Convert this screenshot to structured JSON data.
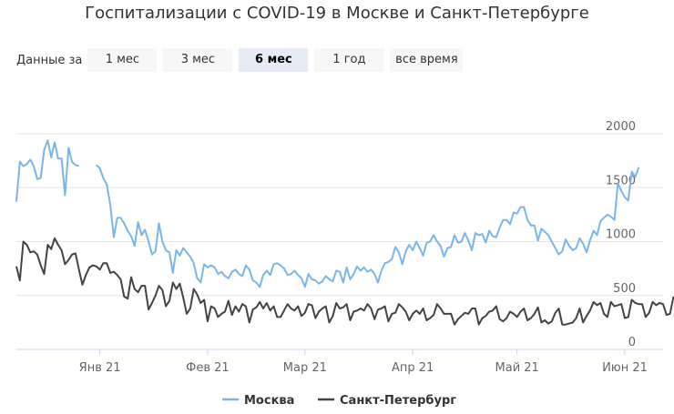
{
  "title": "Госпитализации с COVID-19 в Москве и Санкт-Петербурге",
  "range_selector": {
    "label": "Данные за",
    "buttons": [
      {
        "label": "1 мес",
        "active": false
      },
      {
        "label": "3 мес",
        "active": false
      },
      {
        "label": "6 мес",
        "active": true
      },
      {
        "label": "1 год",
        "active": false
      },
      {
        "label": "все время",
        "active": false
      }
    ]
  },
  "colors": {
    "moscow": "#7cb5ec",
    "spb": "#434348",
    "grid": "#e6e6e6",
    "axis_text": "#666666"
  },
  "chart_data": {
    "type": "line",
    "title": "Госпитализации с COVID-19 в Москве и Санкт-Петербурге",
    "x_tick_labels": [
      "Янв 21",
      "Фев 21",
      "Мар 21",
      "Апр 21",
      "Май 21",
      "Июн 21"
    ],
    "x_ticks": [
      "2021-01-01",
      "2021-02-01",
      "2021-03-01",
      "2021-04-01",
      "2021-05-01",
      "2021-06-01"
    ],
    "x_range": [
      "2020-12-08",
      "2021-06-12"
    ],
    "ylim": [
      0,
      2000
    ],
    "y_ticks": [
      0,
      500,
      1000,
      1500,
      2000
    ],
    "grid": true,
    "legend_position": "bottom-center",
    "series": [
      {
        "name": "Москва",
        "color": "#7cb5ec",
        "segments": [
          {
            "start": "2020-12-08",
            "values": [
              1370,
              1740,
              1700,
              1720,
              1760,
              1700,
              1580,
              1590,
              1850,
              1940,
              1780,
              1920,
              1770,
              1770,
              1430,
              1870,
              1740,
              1710,
              1700
            ]
          },
          {
            "start": "2020-12-31",
            "values": [
              1710,
              1680,
              1590,
              1530,
              1340,
              1040,
              1220,
              1220,
              1170,
              1100,
              1050,
              960,
              1180,
              1060,
              1110,
              1000,
              880,
              910,
              1170,
              1000,
              920,
              900,
              710,
              920,
              870,
              940,
              900,
              860,
              800,
              660,
              620,
              790,
              760,
              780,
              760,
              700,
              720,
              680,
              660,
              720,
              740,
              700,
              680,
              780,
              740,
              640,
              620,
              580,
              690,
              730,
              690,
              790,
              800,
              780,
              750,
              690,
              700,
              730,
              690,
              660,
              580,
              700,
              650,
              640,
              610,
              630,
              680,
              650,
              630,
              730,
              720,
              620,
              760,
              650,
              700,
              770,
              730,
              760,
              720,
              740,
              700,
              620,
              730,
              800,
              810,
              840,
              950,
              900,
              790,
              910,
              970,
              920,
              1000,
              940,
              870,
              990,
              1000,
              1060,
              1000,
              960,
              860,
              940,
              950,
              1060,
              990,
              1000,
              1080,
              1010,
              920,
              1080,
              1060,
              1070,
              990,
              1100,
              1050,
              1040,
              1130,
              1200,
              1200,
              1160,
              1270,
              1260,
              1320,
              1320,
              1200,
              1150,
              1150,
              1010,
              1120,
              1090,
              1060,
              1000,
              940,
              880,
              910,
              1020,
              960,
              920,
              940,
              1030,
              980,
              900,
              1010,
              1100,
              1060,
              1190,
              1220,
              1250,
              1230,
              1200,
              1540,
              1470,
              1410,
              1380,
              1650,
              1600,
              1690
            ]
          }
        ]
      },
      {
        "name": "Санкт-Петербург",
        "color": "#434348",
        "segments": [
          {
            "start": "2020-12-08",
            "values": [
              770,
              640,
              1000,
              970,
              900,
              910,
              880,
              780,
              700,
              970,
              930,
              1030,
              970,
              920,
              790,
              830,
              880,
              890,
              740,
              600,
              690,
              760,
              780,
              770,
              740,
              800,
              800,
              710,
              720,
              690,
              650,
              490,
              470,
              670,
              560,
              530,
              590,
              590,
              370,
              430,
              500,
              590,
              550,
              400,
              450,
              620,
              560,
              610,
              480,
              330,
              380,
              560,
              510,
              430,
              460,
              260,
              400,
              380,
              300,
              330,
              350,
              450,
              320,
              400,
              350,
              420,
              400,
              250,
              370,
              390,
              440,
              380,
              430,
              360,
              400,
              300,
              300,
              360,
              420,
              380,
              360,
              400,
              310,
              340,
              420,
              410,
              290,
              350,
              380,
              400,
              250,
              310,
              430,
              380,
              390,
              420,
              270,
              350,
              360,
              380,
              360,
              420,
              380,
              280,
              370,
              380,
              400,
              260,
              330,
              340,
              420,
              390,
              350,
              270,
              330,
              360,
              330,
              380,
              270,
              290,
              320,
              420,
              380,
              330,
              330,
              330,
              230,
              280,
              310,
              340,
              330,
              380,
              380,
              230,
              290,
              310,
              350,
              360,
              400,
              280,
              260,
              290,
              350,
              330,
              300,
              350,
              380,
              270,
              290,
              330,
              390,
              250,
              270,
              240,
              260,
              340,
              380,
              230,
              230,
              240,
              250,
              290,
              380,
              250,
              310,
              360,
              440,
              410,
              430,
              330,
              300,
              440,
              400,
              410,
              420,
              290,
              300,
              460,
              430,
              420,
              420,
              300,
              340,
              440,
              410,
              430,
              420,
              320,
              330,
              490
            ]
          }
        ]
      }
    ]
  }
}
